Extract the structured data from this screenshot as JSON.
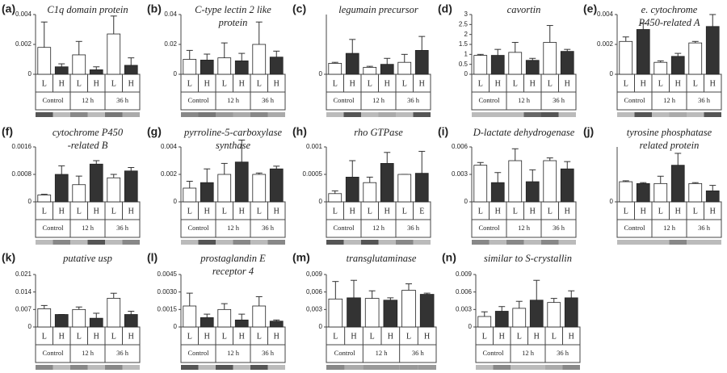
{
  "chart_data": [
    {
      "type": "bar",
      "panel": "(a)",
      "title": [
        "C1q domain protein"
      ],
      "categories": [
        "L",
        "H",
        "L",
        "H",
        "L",
        "H"
      ],
      "groups": [
        "Control",
        "12 h",
        "36 h"
      ],
      "values": [
        0.0018,
        0.0005,
        0.0013,
        0.0003,
        0.0027,
        0.0006
      ],
      "errors": [
        0.0017,
        0.0002,
        0.0009,
        0.0002,
        0.0012,
        0.0005
      ],
      "ylim": [
        0,
        0.004
      ],
      "yticks": [
        0,
        0.002,
        0.004
      ],
      "colors": [
        "#ffffff",
        "#333333"
      ],
      "strip_colors": [
        "#555555",
        "#bbbbbb",
        "#888888",
        "#bbbbbb",
        "#777777",
        "#aaaaaa"
      ]
    },
    {
      "type": "bar",
      "panel": "(b)",
      "title": [
        "C-type lectin 2 like",
        "protein"
      ],
      "categories": [
        "L",
        "H",
        "L",
        "H",
        "L",
        "H"
      ],
      "groups": [
        "Control",
        "12 h",
        "36 h"
      ],
      "values": [
        0.01,
        0.0095,
        0.011,
        0.009,
        0.02,
        0.0115
      ],
      "errors": [
        0.006,
        0.004,
        0.01,
        0.005,
        0.015,
        0.004
      ],
      "ylim": [
        0,
        0.04
      ],
      "yticks": [
        0,
        0.02,
        0.04
      ],
      "colors": [
        "#ffffff",
        "#333333"
      ],
      "strip_colors": [
        "#888888",
        "#777777",
        "#999999",
        "#aaaaaa",
        "#888888",
        "#aaaaaa"
      ]
    },
    {
      "type": "bar",
      "panel": "(c)",
      "title": [
        "legumain precursor"
      ],
      "categories": [
        "L",
        "H",
        "L",
        "H",
        "L",
        "H"
      ],
      "groups": [
        "Control",
        "12 h",
        "36 h"
      ],
      "values": [
        0.0055,
        0.0105,
        0.0035,
        0.005,
        0.006,
        0.012
      ],
      "errors": [
        0.0005,
        0.007,
        0.0005,
        0.003,
        0.004,
        0.007
      ],
      "ylim": [
        0,
        0.03
      ],
      "yticks": [
        0
      ],
      "colors": [
        "#ffffff",
        "#333333"
      ],
      "strip_colors": [
        "#bbbbbb",
        "#555555",
        "#bbbbbb",
        "#aaaaaa",
        "#bbbbbb",
        "#555555"
      ]
    },
    {
      "type": "bar",
      "panel": "(d)",
      "title": [
        "cavortin"
      ],
      "categories": [
        "L",
        "H",
        "L",
        "H",
        "L",
        "H"
      ],
      "groups": [
        "Control",
        "12 h",
        "36 h"
      ],
      "values": [
        0.95,
        0.95,
        1.1,
        0.7,
        1.6,
        1.15
      ],
      "errors": [
        0.05,
        0.3,
        0.5,
        0.1,
        0.85,
        0.1
      ],
      "ylim": [
        0,
        3
      ],
      "yticks": [
        0,
        0.5,
        1,
        1.5,
        2,
        2.5,
        3
      ],
      "colors": [
        "#ffffff",
        "#333333"
      ],
      "strip_colors": [
        "#bbbbbb",
        "#bbbbbb",
        "#bbbbbb",
        "#666666",
        "#555555",
        "#bbbbbb"
      ]
    },
    {
      "type": "bar",
      "panel": "(e)",
      "title": [
        "e. cytochrome",
        "P450-related A"
      ],
      "categories": [
        "L",
        "H",
        "L",
        "H",
        "L",
        "H"
      ],
      "groups": [
        "Control",
        "12 h",
        "36 h"
      ],
      "values": [
        0.0022,
        0.003,
        0.0008,
        0.0012,
        0.0021,
        0.0032
      ],
      "errors": [
        0.0003,
        0.0004,
        0.0001,
        0.0002,
        0.0001,
        0.0008
      ],
      "ylim": [
        0,
        0.004
      ],
      "yticks": [
        0,
        0.002,
        0.004
      ],
      "colors": [
        "#ffffff",
        "#333333"
      ],
      "strip_colors": [
        "#bbbbbb",
        "#555555",
        "#bbbbbb",
        "#aaaaaa",
        "#bbbbbb",
        "#555555"
      ]
    },
    {
      "type": "bar",
      "panel": "(f)",
      "title": [
        "cytochrome P450",
        "-related B"
      ],
      "categories": [
        "L",
        "H",
        "L",
        "H",
        "L",
        "H"
      ],
      "groups": [
        "Control",
        "12 h",
        "36 h"
      ],
      "values": [
        0.0002,
        0.0008,
        0.0005,
        0.0011,
        0.0007,
        0.0009
      ],
      "errors": [
        2e-05,
        0.00025,
        0.00025,
        0.0001,
        0.0001,
        0.0001
      ],
      "ylim": [
        0,
        0.0016
      ],
      "yticks": [
        0,
        0.0008,
        0.0016
      ],
      "colors": [
        "#ffffff",
        "#333333"
      ],
      "strip_colors": [
        "#bbbbbb",
        "#888888",
        "#bbbbbb",
        "#555555",
        "#bbbbbb",
        "#888888"
      ]
    },
    {
      "type": "bar",
      "panel": "(g)",
      "title": [
        "pyrroline-5-carboxylase",
        "synthase"
      ],
      "categories": [
        "L",
        "H",
        "L",
        "H",
        "L",
        "H"
      ],
      "groups": [
        "Control",
        "12 h",
        "36 h"
      ],
      "values": [
        0.001,
        0.0014,
        0.002,
        0.0029,
        0.002,
        0.0024
      ],
      "errors": [
        0.0005,
        0.001,
        0.0008,
        0.0016,
        0.0001,
        0.0002
      ],
      "ylim": [
        0,
        0.004
      ],
      "yticks": [
        0,
        0.002,
        0.004
      ],
      "colors": [
        "#ffffff",
        "#333333"
      ],
      "strip_colors": [
        "#bbbbbb",
        "#555555",
        "#bbbbbb",
        "#888888",
        "#bbbbbb",
        "#888888"
      ]
    },
    {
      "type": "bar",
      "panel": "(h)",
      "title": [
        "rho GTPase"
      ],
      "categories": [
        "L",
        "H",
        "L",
        "H",
        "L",
        "E"
      ],
      "groups": [
        "Control",
        "12 h",
        "36 h"
      ],
      "values": [
        0.00015,
        0.00045,
        0.00035,
        0.0007,
        0.0005,
        0.00052
      ],
      "errors": [
        5e-05,
        0.0003,
        0.0001,
        0.0002,
        0,
        0.0004
      ],
      "ylim": [
        0,
        0.001
      ],
      "yticks": [
        0,
        0.0005,
        0.001
      ],
      "colors": [
        "#ffffff",
        "#333333"
      ],
      "strip_colors": [
        "#555555",
        "#bbbbbb",
        "#555555",
        "#bbbbbb",
        "#888888",
        "#bbbbbb"
      ]
    },
    {
      "type": "bar",
      "panel": "(i)",
      "title": [
        "D-lactate dehydrogenase"
      ],
      "categories": [
        "L",
        "H",
        "L",
        "H",
        "L",
        "H"
      ],
      "groups": [
        "Control",
        "12 h",
        "36 h"
      ],
      "values": [
        0.004,
        0.0021,
        0.0045,
        0.0022,
        0.0045,
        0.0036
      ],
      "errors": [
        0.0003,
        0.0011,
        0.0013,
        0.0013,
        0.0003,
        0.0008
      ],
      "ylim": [
        0,
        0.006
      ],
      "yticks": [
        0,
        0.003,
        0.006
      ],
      "colors": [
        "#ffffff",
        "#333333"
      ],
      "strip_colors": [
        "#888888",
        "#bbbbbb",
        "#888888",
        "#bbbbbb",
        "#888888",
        "#bbbbbb"
      ]
    },
    {
      "type": "bar",
      "panel": "(j)",
      "title": [
        "tyrosine phosphatase",
        "related protein"
      ],
      "categories": [
        "L",
        "H",
        "L",
        "H",
        "L",
        "H"
      ],
      "groups": [
        "Control",
        "12 h",
        "36 h"
      ],
      "values": [
        0.0022,
        0.002,
        0.002,
        0.004,
        0.002,
        0.0012
      ],
      "errors": [
        0.0001,
        0.0001,
        0.0008,
        0.0013,
        0.0001,
        0.0006
      ],
      "ylim": [
        0,
        0.006
      ],
      "yticks": [
        0
      ],
      "colors": [
        "#ffffff",
        "#333333"
      ],
      "strip_colors": [
        "#bbbbbb",
        "#bbbbbb",
        "#bbbbbb",
        "#888888",
        "#bbbbbb",
        "#bbbbbb"
      ]
    },
    {
      "type": "bar",
      "panel": "(k)",
      "title": [
        "putative usp"
      ],
      "categories": [
        "L",
        "H",
        "L",
        "H",
        "L",
        "H"
      ],
      "groups": [
        "Control",
        "12 h",
        "36 h"
      ],
      "values": [
        0.0073,
        0.005,
        0.007,
        0.0035,
        0.0115,
        0.005
      ],
      "errors": [
        0.0013,
        0,
        0.001,
        0.002,
        0.002,
        0.0013
      ],
      "ylim": [
        0,
        0.021
      ],
      "yticks": [
        0,
        0.007,
        0.014,
        0.021
      ],
      "colors": [
        "#ffffff",
        "#333333"
      ],
      "strip_colors": [
        "#888888",
        "#bbbbbb",
        "#888888",
        "#bbbbbb",
        "#888888",
        "#bbbbbb"
      ]
    },
    {
      "type": "bar",
      "panel": "(l)",
      "title": [
        "prostaglandin E",
        "receptor 4"
      ],
      "categories": [
        "L",
        "H",
        "L",
        "H",
        "L",
        "H"
      ],
      "groups": [
        "Control",
        "12 h",
        "36 h"
      ],
      "values": [
        0.0018,
        0.0008,
        0.0015,
        0.0006,
        0.0018,
        0.0005
      ],
      "errors": [
        0.0011,
        0.0003,
        0.0005,
        0.0005,
        0.0008,
        0.0001
      ],
      "ylim": [
        0,
        0.0045
      ],
      "yticks": [
        0,
        0.0015,
        {
          "value": 0.003,
          "label": "0.0030"
        },
        0.0045
      ],
      "colors": [
        "#ffffff",
        "#333333"
      ],
      "strip_colors": [
        "#555555",
        "#bbbbbb",
        "#555555",
        "#bbbbbb",
        "#555555",
        "#bbbbbb"
      ]
    },
    {
      "type": "bar",
      "panel": "(m)",
      "title": [
        "transglutaminase"
      ],
      "categories": [
        "L",
        "H",
        "L",
        "H",
        "L",
        "H"
      ],
      "groups": [
        "Control",
        "12 h",
        "36 h"
      ],
      "values": [
        0.0048,
        0.005,
        0.0049,
        0.0046,
        0.0063,
        0.0056
      ],
      "errors": [
        0.003,
        0.003,
        0.0013,
        0.0004,
        0.0011,
        0.0002
      ],
      "ylim": [
        0,
        0.009
      ],
      "yticks": [
        0,
        {
          "value": 0.003,
          "label": "0,003"
        },
        {
          "value": 0.006,
          "label": "0,006"
        },
        {
          "value": 0.009,
          "label": "0,009"
        }
      ],
      "colors": [
        "#ffffff",
        "#333333"
      ],
      "strip_colors": [
        "#888888",
        "#aaaaaa",
        "#999999",
        "#999999",
        "#999999",
        "#999999"
      ]
    },
    {
      "type": "bar",
      "panel": "(n)",
      "title": [
        "similar to S-crystallin"
      ],
      "categories": [
        "L",
        "H",
        "L",
        "H",
        "L",
        "H"
      ],
      "groups": [
        "Control",
        "12 h",
        "36 h"
      ],
      "values": [
        0.0018,
        0.0027,
        0.0032,
        0.0046,
        0.0042,
        0.005
      ],
      "errors": [
        0.0008,
        0.0008,
        0.0012,
        0.0034,
        0.0007,
        0.0012
      ],
      "ylim": [
        0,
        0.009
      ],
      "yticks": [
        0,
        0.003,
        0.006,
        0.009
      ],
      "colors": [
        "#ffffff",
        "#333333"
      ],
      "strip_colors": [
        "#bbbbbb",
        "#888888",
        "#bbbbbb",
        "#bbbbbb",
        "#aaaaaa",
        "#888888"
      ]
    }
  ]
}
